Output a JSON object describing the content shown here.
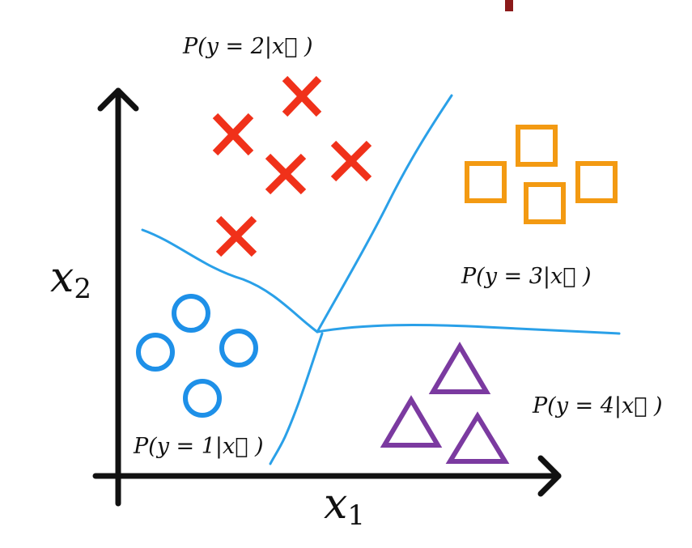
{
  "axes": {
    "x_label": "x",
    "x_sub": "1",
    "y_label": "x",
    "y_sub": "2",
    "axis_color": "#111111"
  },
  "boundary_color": "#2aa0e8",
  "classes": [
    {
      "id": 1,
      "label": "P(y = 1|x⃗ )",
      "marker": "circle",
      "color": "#1e90e8",
      "count": 4
    },
    {
      "id": 2,
      "label": "P(y = 2|x⃗ )",
      "marker": "cross",
      "color": "#f0311a",
      "count": 5
    },
    {
      "id": 3,
      "label": "P(y = 3|x⃗ )",
      "marker": "square",
      "color": "#f39a12",
      "count": 4
    },
    {
      "id": 4,
      "label": "P(y = 4|x⃗ )",
      "marker": "triangle",
      "color": "#7b3aa0",
      "count": 3
    }
  ],
  "top_bar_color": "#8b1a1a"
}
